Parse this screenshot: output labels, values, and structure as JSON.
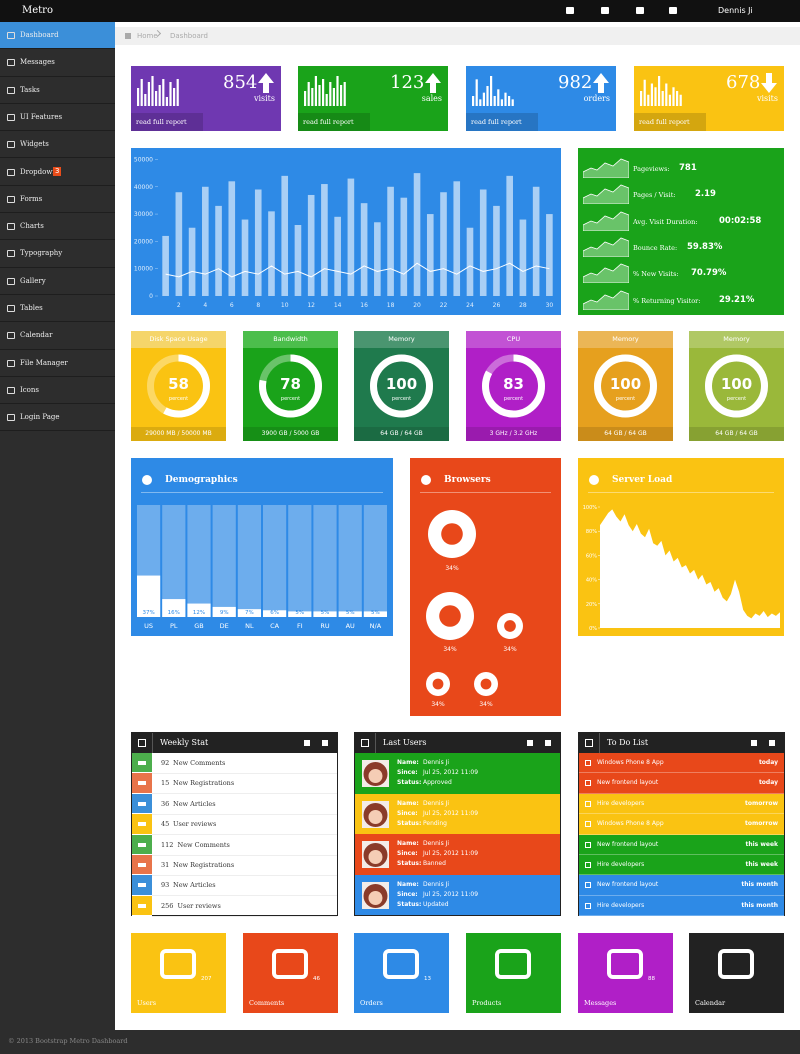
{
  "header": {
    "brand": "Metro",
    "user": "Dennis Ji"
  },
  "menu": [
    {
      "label": "Dashboard"
    },
    {
      "label": "Messages"
    },
    {
      "label": "Tasks"
    },
    {
      "label": "UI Features"
    },
    {
      "label": "Widgets"
    },
    {
      "label": "Dropdown",
      "badge": 3
    },
    {
      "label": "Forms"
    },
    {
      "label": "Charts"
    },
    {
      "label": "Typography"
    },
    {
      "label": "Gallery"
    },
    {
      "label": "Tables"
    },
    {
      "label": "Calendar"
    },
    {
      "label": "File Manager"
    },
    {
      "label": "Icons"
    },
    {
      "label": "Login Page"
    }
  ],
  "breadcrumb": [
    "Home",
    "Dashboard"
  ],
  "stat_tiles": [
    {
      "value": 854,
      "label": "visits",
      "link": "read full report",
      "trend": "up",
      "spark": [
        6,
        9,
        4,
        8,
        10,
        5,
        7,
        9,
        3,
        8,
        6,
        9
      ]
    },
    {
      "value": 123,
      "label": "sales",
      "link": "read full report",
      "trend": "up",
      "spark": [
        5,
        8,
        6,
        10,
        7,
        9,
        4,
        8,
        6,
        10,
        7,
        8
      ]
    },
    {
      "value": 982,
      "label": "orders",
      "link": "read full report",
      "trend": "up",
      "spark": [
        3,
        8,
        2,
        4,
        6,
        9,
        3,
        5,
        2,
        4,
        3,
        2
      ]
    },
    {
      "value": 678,
      "label": "visits",
      "link": "read full report",
      "trend": "down",
      "spark": [
        4,
        7,
        3,
        6,
        5,
        8,
        4,
        6,
        3,
        5,
        4,
        3
      ]
    }
  ],
  "visits_chart": {
    "type": "bar",
    "x": [
      1,
      2,
      3,
      4,
      5,
      6,
      7,
      8,
      9,
      10,
      11,
      12,
      13,
      14,
      15,
      16,
      17,
      18,
      19,
      20,
      21,
      22,
      23,
      24,
      25,
      26,
      27,
      28,
      29,
      30
    ],
    "series": [
      {
        "type": "bar",
        "color": "#a9cff5",
        "values": [
          22000,
          38000,
          25000,
          40000,
          33000,
          42000,
          28000,
          39000,
          31000,
          44000,
          26000,
          37000,
          41000,
          29000,
          43000,
          34000,
          27000,
          40000,
          36000,
          45000,
          30000,
          38000,
          42000,
          25000,
          39000,
          33000,
          44000,
          28000,
          40000,
          30000
        ]
      },
      {
        "type": "line",
        "color": "#ffffff",
        "values": [
          8000,
          7000,
          9000,
          8000,
          10000,
          7000,
          9000,
          8000,
          11000,
          8000,
          9000,
          7000,
          10000,
          9000,
          8000,
          11000,
          9000,
          10000,
          8000,
          12000,
          9000,
          10000,
          8000,
          11000,
          9000,
          10000,
          12000,
          9000,
          11000,
          10000
        ]
      }
    ],
    "xlim": [
      0.5,
      30.5
    ],
    "xticks": [
      2,
      4,
      6,
      8,
      10,
      12,
      14,
      16,
      18,
      20,
      22,
      24,
      26,
      28,
      30
    ],
    "ylim": [
      0,
      52000
    ],
    "yticks": [
      0,
      10000,
      20000,
      30000,
      40000,
      50000
    ]
  },
  "site_stats": [
    {
      "label": "Pageviews:",
      "value": "781"
    },
    {
      "label": "Pages / Visit:",
      "value": "2.19"
    },
    {
      "label": "Avg. Visit Duration:",
      "value": "00:02:58"
    },
    {
      "label": "Bounce Rate:",
      "value": "59.83%"
    },
    {
      "label": "% New Visits:",
      "value": "70.79%"
    },
    {
      "label": "% Returning Visitor:",
      "value": "29.21%"
    }
  ],
  "gauges": [
    {
      "title": "Disk Space Usage",
      "value": 58,
      "unit": "percent",
      "footer": "29000 MB / 50000 MB"
    },
    {
      "title": "Bandwidth",
      "value": 78,
      "unit": "percent",
      "footer": "3900 GB / 5000 GB"
    },
    {
      "title": "Memory",
      "value": 100,
      "unit": "percent",
      "footer": "64 GB / 64 GB"
    },
    {
      "title": "CPU",
      "value": 83,
      "unit": "percent",
      "footer": "3 GHz / 3.2 GHz"
    },
    {
      "title": "Memory",
      "value": 100,
      "unit": "percent",
      "footer": "64 GB / 64 GB"
    },
    {
      "title": "Memory",
      "value": 100,
      "unit": "percent",
      "footer": "64 GB / 64 GB"
    }
  ],
  "demographics": {
    "type": "bar",
    "title": "Demographics",
    "categories": [
      "US",
      "PL",
      "GB",
      "DE",
      "NL",
      "CA",
      "FI",
      "RU",
      "AU",
      "N/A"
    ],
    "values": [
      37,
      16,
      12,
      9,
      7,
      6,
      5,
      5,
      5,
      5
    ],
    "value_labels": [
      "37%",
      "16%",
      "12%",
      "9%",
      "7%",
      "6%",
      "5%",
      "5%",
      "5%",
      "5%"
    ],
    "ylim": [
      0,
      100
    ]
  },
  "browsers": {
    "title": "Browsers",
    "values": [
      34,
      34,
      34,
      34,
      34
    ],
    "value_labels": [
      "34%",
      "34%",
      "34%",
      "34%",
      "34%"
    ]
  },
  "server_load": {
    "type": "area",
    "title": "Server Load",
    "values": [
      85,
      90,
      95,
      98,
      92,
      88,
      94,
      85,
      80,
      86,
      78,
      75,
      82,
      70,
      68,
      72,
      60,
      64,
      55,
      58,
      50,
      52,
      45,
      48,
      40,
      44,
      36,
      38,
      30,
      33,
      25,
      22,
      28,
      40,
      30,
      15,
      10,
      8,
      12,
      10,
      14,
      9,
      12,
      10,
      13
    ],
    "ylim": [
      0,
      100
    ],
    "yticks": [
      {
        "value": 0,
        "label": "0%"
      },
      {
        "value": 20,
        "label": "20%"
      },
      {
        "value": 40,
        "label": "40%"
      },
      {
        "value": 60,
        "label": "60%"
      },
      {
        "value": 80,
        "label": "80%"
      },
      {
        "value": 100,
        "label": "100%"
      }
    ]
  },
  "weekly_stat": {
    "title": "Weekly Stat",
    "items": [
      {
        "value": 92,
        "label": "New Comments"
      },
      {
        "value": 15,
        "label": "New Registrations"
      },
      {
        "value": 36,
        "label": "New Articles"
      },
      {
        "value": 45,
        "label": "User reviews"
      },
      {
        "value": 112,
        "label": "New Comments"
      },
      {
        "value": 31,
        "label": "New Registrations"
      },
      {
        "value": 93,
        "label": "New Articles"
      },
      {
        "value": 256,
        "label": "User reviews"
      }
    ]
  },
  "last_users": {
    "title": "Last Users",
    "users": [
      {
        "name_label": "Name:",
        "name": "Dennis Ji",
        "since_label": "Since:",
        "since": "Jul 25, 2012 11:09",
        "status_label": "Status:",
        "status": "Approved"
      },
      {
        "name_label": "Name:",
        "name": "Dennis Ji",
        "since_label": "Since:",
        "since": "Jul 25, 2012 11:09",
        "status_label": "Status:",
        "status": "Pending"
      },
      {
        "name_label": "Name:",
        "name": "Dennis Ji",
        "since_label": "Since:",
        "since": "Jul 25, 2012 11:09",
        "status_label": "Status:",
        "status": "Banned"
      },
      {
        "name_label": "Name:",
        "name": "Dennis Ji",
        "since_label": "Since:",
        "since": "Jul 25, 2012 11:09",
        "status_label": "Status:",
        "status": "Updated"
      }
    ]
  },
  "todo": {
    "title": "To Do List",
    "items": [
      {
        "task": "Windows Phone 8 App",
        "when": "today"
      },
      {
        "task": "New frontend layout",
        "when": "today"
      },
      {
        "task": "Hire developers",
        "when": "tomorrow"
      },
      {
        "task": "Windows Phone 8 App",
        "when": "tomorrow"
      },
      {
        "task": "New frontend layout",
        "when": "this week"
      },
      {
        "task": "Hire developers",
        "when": "this week"
      },
      {
        "task": "New frontend layout",
        "when": "this month"
      },
      {
        "task": "Hire developers",
        "when": "this month"
      }
    ]
  },
  "shortcuts": [
    {
      "label": "Users",
      "count": 207
    },
    {
      "label": "Comments",
      "count": 46
    },
    {
      "label": "Orders",
      "count": 13
    },
    {
      "label": "Products"
    },
    {
      "label": "Messages",
      "count": 88
    },
    {
      "label": "Calendar"
    }
  ],
  "footer": "© 2013 Bootstrap Metro Dashboard"
}
